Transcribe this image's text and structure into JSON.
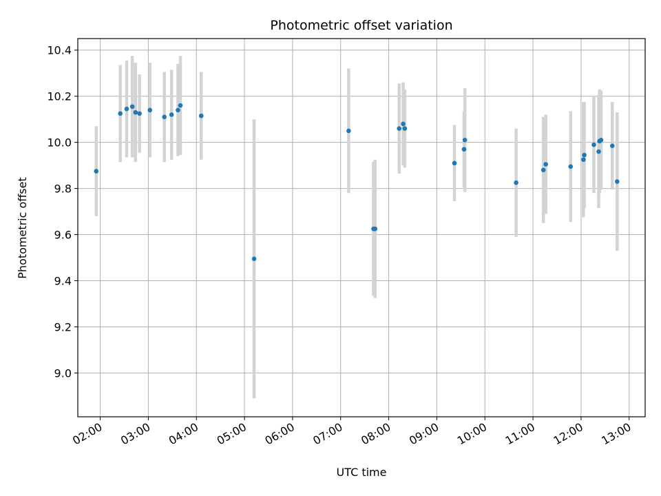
{
  "chart_data": {
    "type": "scatter",
    "title": "Photometric offset variation",
    "xlabel": "UTC time",
    "ylabel": "Photometric offset",
    "x_axis": "time",
    "xlim": [
      "01:32",
      "13:20"
    ],
    "ylim": [
      8.81,
      10.45
    ],
    "xticks": [
      "02:00",
      "03:00",
      "04:00",
      "05:00",
      "06:00",
      "07:00",
      "08:00",
      "09:00",
      "10:00",
      "11:00",
      "12:00",
      "13:00"
    ],
    "yticks": [
      9.0,
      9.2,
      9.4,
      9.6,
      9.8,
      10.0,
      10.2,
      10.4
    ],
    "ytick_labels": [
      "9.0",
      "9.2",
      "9.4",
      "9.6",
      "9.8",
      "10.0",
      "10.2",
      "10.4"
    ],
    "grid": true,
    "colors": {
      "point": "#1f77b4",
      "errorbar": "#d3d3d3",
      "grid": "#b0b0b0"
    },
    "series": [
      {
        "x": [
          "01:55",
          "02:25",
          "02:33",
          "02:40",
          "02:44",
          "02:49",
          "03:02",
          "03:20",
          "03:29",
          "03:37",
          "03:40",
          "04:06",
          "05:12",
          "07:10",
          "07:41",
          "07:43",
          "08:13",
          "08:18",
          "08:20",
          "09:22",
          "09:34",
          "09:35",
          "10:39",
          "11:13",
          "11:16",
          "11:47",
          "12:03",
          "12:04",
          "12:16",
          "12:22",
          "12:23",
          "12:25",
          "12:39",
          "12:45"
        ],
        "y": [
          9.875,
          10.125,
          10.145,
          10.155,
          10.13,
          10.125,
          10.14,
          10.11,
          10.12,
          10.14,
          10.16,
          10.115,
          9.495,
          10.05,
          9.625,
          9.625,
          10.06,
          10.08,
          10.06,
          9.91,
          9.97,
          10.01,
          9.825,
          9.88,
          9.905,
          9.895,
          9.925,
          9.945,
          9.99,
          9.96,
          10.005,
          10.01,
          9.985,
          9.83
        ],
        "yerr": [
          0.195,
          0.21,
          0.21,
          0.22,
          0.215,
          0.17,
          0.205,
          0.195,
          0.195,
          0.2,
          0.215,
          0.19,
          0.605,
          0.27,
          0.29,
          0.3,
          0.195,
          0.18,
          0.17,
          0.165,
          0.165,
          0.225,
          0.235,
          0.23,
          0.215,
          0.24,
          0.25,
          0.23,
          0.21,
          0.245,
          0.225,
          0.215,
          0.19,
          0.3
        ]
      }
    ]
  }
}
